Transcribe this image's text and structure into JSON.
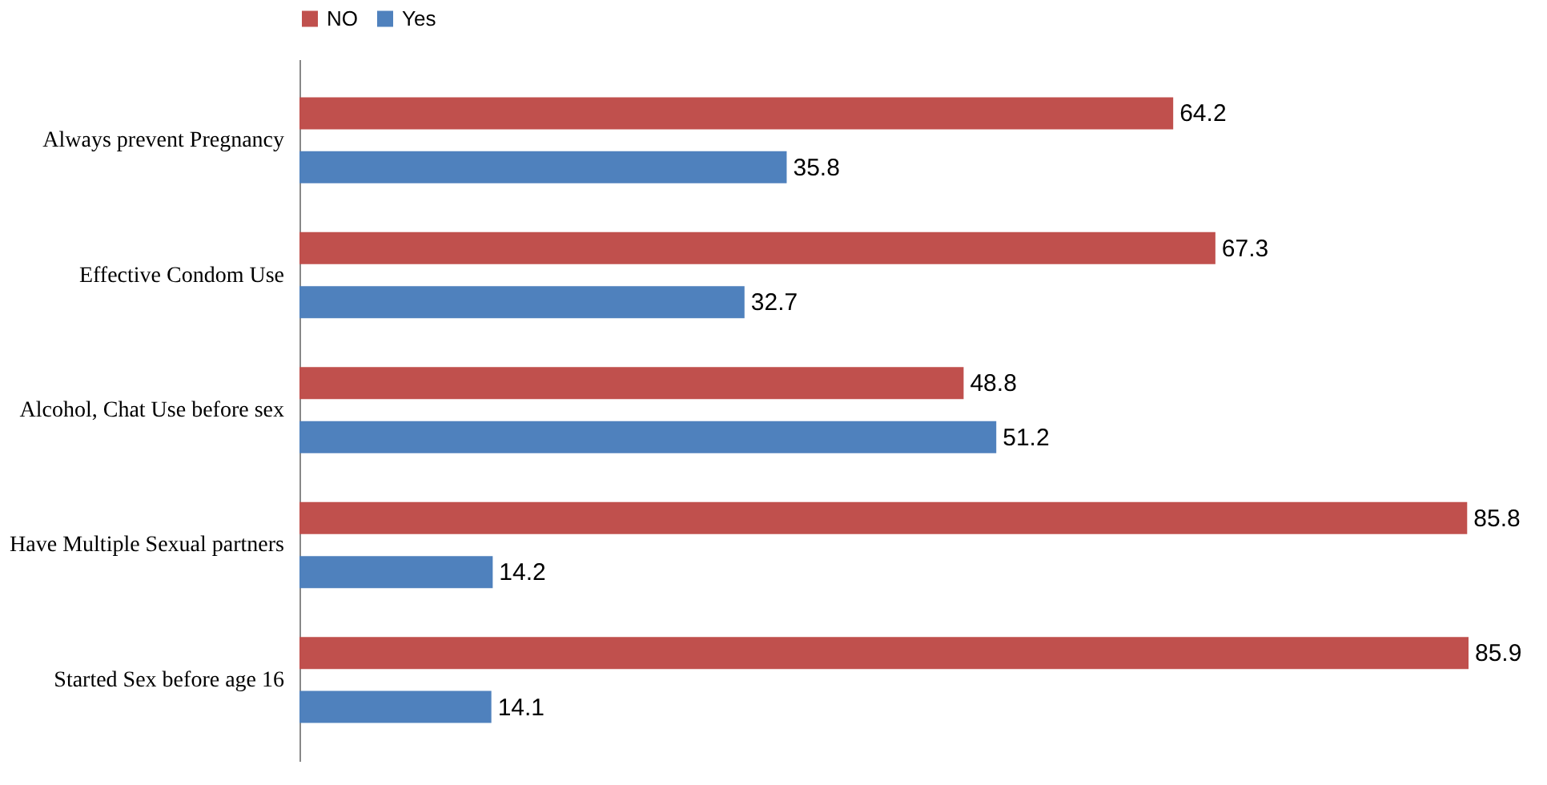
{
  "chart_data": {
    "type": "bar",
    "orientation": "horizontal",
    "categories": [
      "Always prevent Pregnancy",
      "Effective Condom Use",
      "Alcohol, Chat Use before sex",
      "Have Multiple Sexual partners",
      "Started Sex before age 16"
    ],
    "series": [
      {
        "name": "NO",
        "color": "#c0504d",
        "values": [
          64.2,
          67.3,
          48.8,
          85.8,
          85.9
        ]
      },
      {
        "name": "Yes",
        "color": "#4f81bd",
        "values": [
          35.8,
          32.7,
          51.2,
          14.2,
          14.1
        ]
      }
    ],
    "data_labels": true,
    "legend": "top",
    "grid": false
  }
}
